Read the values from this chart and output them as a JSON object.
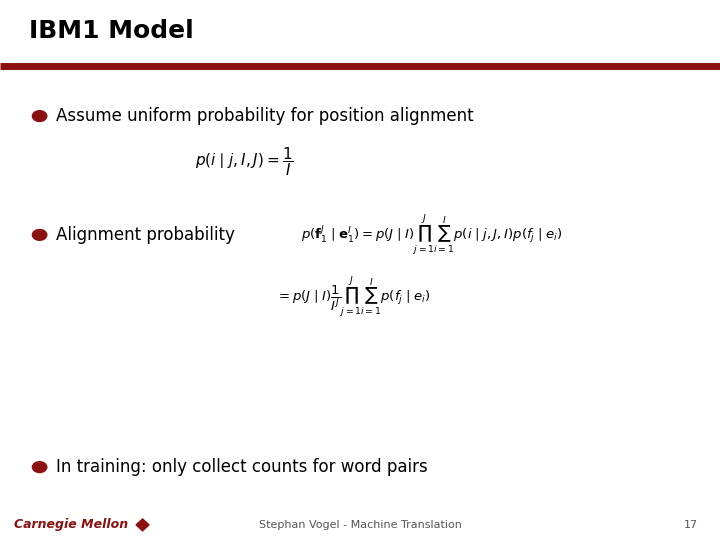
{
  "title": "IBM1 Model",
  "title_fontsize": 18,
  "bg_color": "#ffffff",
  "header_line_color": "#8B1010",
  "text_color": "#000000",
  "bullet_color": "#8B1010",
  "bullet1_text": "Assume uniform probability for position alignment",
  "bullet1_formula": "$p(i\\mid j,I,J) = \\dfrac{1}{I}$",
  "bullet2_text": "Alignment probability",
  "bullet2_formula1": "$p(\\mathbf{f}_1^J\\mid\\mathbf{e}_1^I) = p(J\\mid I)\\prod_{j=1}^{J}\\sum_{i=1}^{I} p(i\\mid j,J,I)p(f_j\\mid e_i)$",
  "bullet2_formula2": "$= p(J\\mid I)\\dfrac{1}{I^J}\\prod_{j=1}^{J}\\sum_{i=1}^{I} p(f_j\\mid e_i)$",
  "bullet3_text": "In training: only collect counts for word pairs",
  "footer_text": "Stephan Vogel - Machine Translation",
  "footer_page": "17",
  "footer_color": "#555555",
  "footer_fontsize": 8,
  "cmu_text": "Carnegie Mellon",
  "cmu_color": "#8B1010",
  "text_fontsize": 12,
  "formula_fontsize": 11
}
